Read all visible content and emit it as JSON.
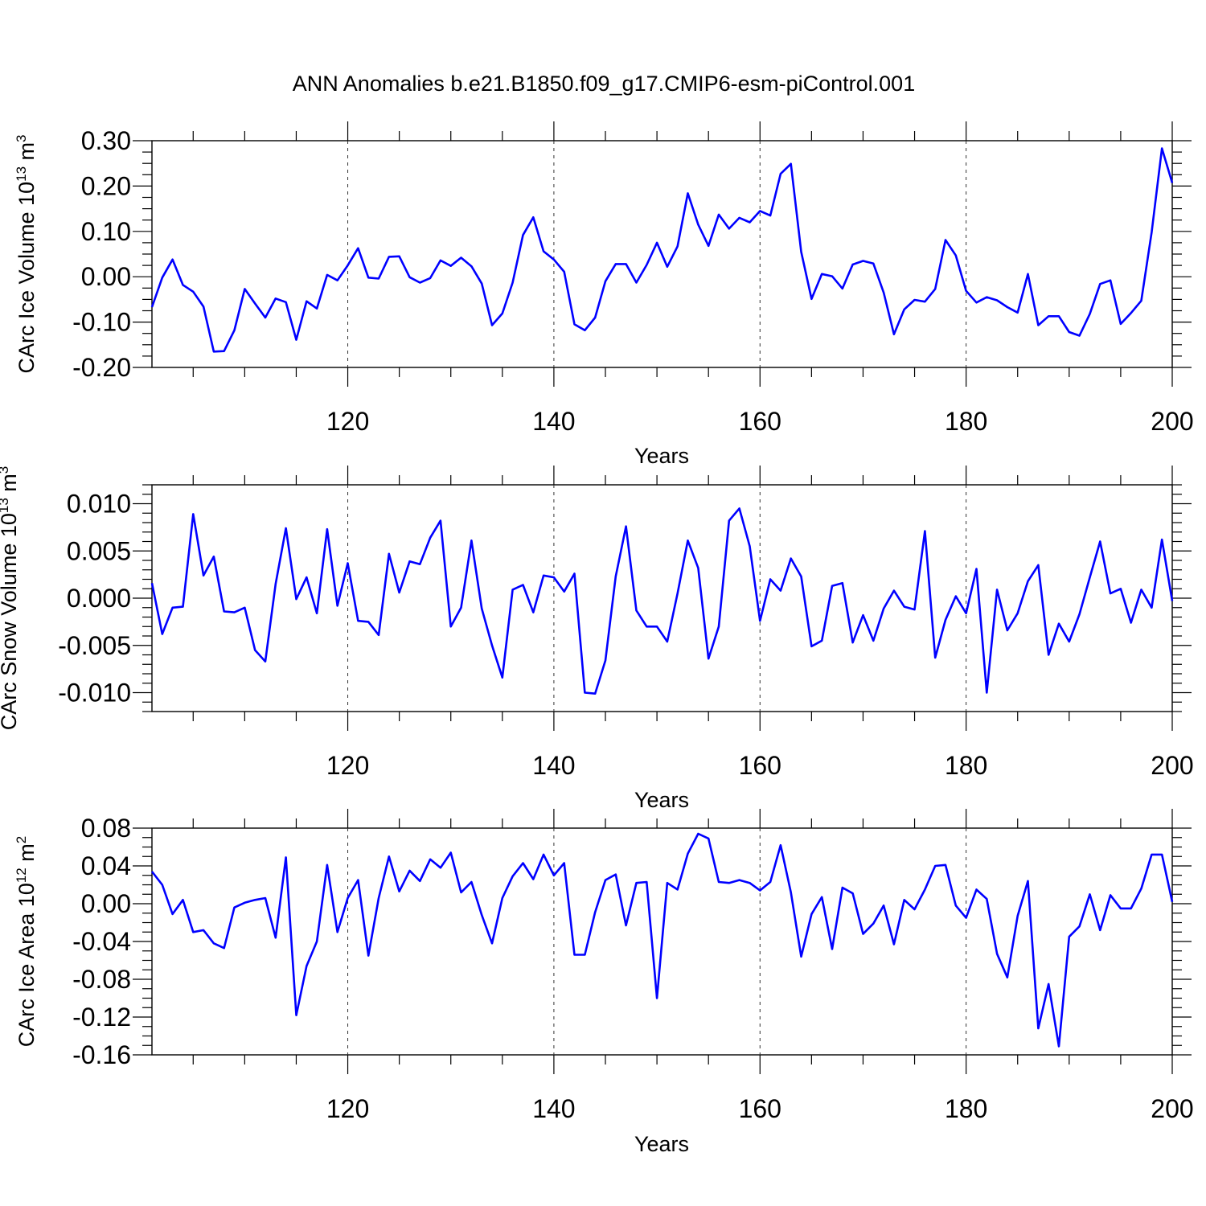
{
  "title": "ANN Anomalies b.e21.B1850.f09_g17.CMIP6-esm-piControl.001",
  "line_color": "#0000ff",
  "chart_data": [
    {
      "type": "line",
      "title": "ANN Anomalies b.e21.B1850.f09_g17.CMIP6-esm-piControl.001",
      "xlabel": "Years",
      "ylabel": "CArc Ice Volume 10",
      "ylabel_exp": "13",
      "ylabel_unit": "m",
      "ylabel_unit_exp": "3",
      "xlim": [
        101,
        200
      ],
      "ylim": [
        -0.2,
        0.3
      ],
      "yticks": [
        -0.2,
        -0.1,
        0.0,
        0.1,
        0.2,
        0.3
      ],
      "ytick_labels": [
        "-0.20",
        "-0.10",
        "0.00",
        "0.10",
        "0.20",
        "0.30"
      ],
      "yminor": [
        -0.175,
        -0.15,
        -0.125,
        -0.075,
        -0.05,
        -0.025,
        0.025,
        0.05,
        0.075,
        0.125,
        0.15,
        0.175,
        0.225,
        0.25,
        0.275
      ],
      "xticks": [
        120,
        140,
        160,
        180,
        200
      ],
      "xtick_labels": [
        "120",
        "140",
        "160",
        "180",
        "200"
      ],
      "x_start": 101,
      "series": [
        {
          "name": "CArc Ice Volume",
          "values": [
            -0.067,
            -0.002,
            0.038,
            -0.018,
            -0.033,
            -0.066,
            -0.165,
            -0.164,
            -0.118,
            -0.027,
            -0.059,
            -0.09,
            -0.048,
            -0.056,
            -0.139,
            -0.054,
            -0.07,
            0.004,
            -0.008,
            0.025,
            0.063,
            -0.002,
            -0.004,
            0.044,
            0.045,
            -0.001,
            -0.013,
            -0.003,
            0.036,
            0.024,
            0.042,
            0.023,
            -0.015,
            -0.107,
            -0.081,
            -0.013,
            0.092,
            0.131,
            0.056,
            0.038,
            0.011,
            -0.105,
            -0.118,
            -0.09,
            -0.01,
            0.028,
            0.028,
            -0.013,
            0.026,
            0.075,
            0.022,
            0.067,
            0.184,
            0.115,
            0.068,
            0.137,
            0.106,
            0.13,
            0.12,
            0.145,
            0.135,
            0.227,
            0.249,
            0.055,
            -0.049,
            0.006,
            0.001,
            -0.026,
            0.027,
            0.035,
            0.029,
            -0.035,
            -0.127,
            -0.072,
            -0.051,
            -0.055,
            -0.027,
            0.081,
            0.047,
            -0.031,
            -0.057,
            -0.045,
            -0.052,
            -0.067,
            -0.079,
            0.006,
            -0.107,
            -0.087,
            -0.087,
            -0.122,
            -0.13,
            -0.082,
            -0.016,
            -0.008,
            -0.104,
            -0.08,
            -0.053,
            0.098,
            0.283,
            0.207
          ]
        }
      ]
    },
    {
      "type": "line",
      "xlabel": "Years",
      "ylabel": "CArc Snow Volume 10",
      "ylabel_exp": "13",
      "ylabel_unit": "m",
      "ylabel_unit_exp": "3",
      "xlim": [
        101,
        200
      ],
      "ylim": [
        -0.012,
        0.012
      ],
      "yticks": [
        -0.01,
        -0.005,
        0.0,
        0.005,
        0.01
      ],
      "ytick_labels": [
        "-0.010",
        "-0.005",
        "0.000",
        "0.005",
        "0.010"
      ],
      "yminor": [
        -0.012,
        -0.011,
        -0.009,
        -0.008,
        -0.007,
        -0.006,
        -0.004,
        -0.003,
        -0.002,
        -0.001,
        0.001,
        0.002,
        0.003,
        0.004,
        0.006,
        0.007,
        0.008,
        0.009,
        0.011,
        0.012
      ],
      "xticks": [
        120,
        140,
        160,
        180,
        200
      ],
      "xtick_labels": [
        "120",
        "140",
        "160",
        "180",
        "200"
      ],
      "x_start": 101,
      "series": [
        {
          "name": "CArc Snow Volume",
          "values": [
            0.0016,
            -0.0038,
            -0.001,
            -0.0009,
            0.0089,
            0.0024,
            0.0044,
            -0.0014,
            -0.0015,
            -0.001,
            -0.0055,
            -0.0067,
            0.0015,
            0.0074,
            -0.0001,
            0.0022,
            -0.0016,
            0.0073,
            -0.0008,
            0.0037,
            -0.0024,
            -0.0025,
            -0.0039,
            0.0047,
            0.0006,
            0.0039,
            0.0036,
            0.0064,
            0.0082,
            -0.003,
            -0.001,
            0.0061,
            -0.0011,
            -0.005,
            -0.0084,
            0.0009,
            0.0014,
            -0.0015,
            0.0024,
            0.0022,
            0.0007,
            0.0026,
            -0.01,
            -0.0101,
            -0.0066,
            0.0023,
            0.0076,
            -0.0013,
            -0.003,
            -0.003,
            -0.0046,
            0.0005,
            0.0061,
            0.0032,
            -0.0064,
            -0.003,
            0.0082,
            0.0095,
            0.0055,
            -0.0024,
            0.002,
            0.0008,
            0.0042,
            0.0023,
            -0.0051,
            -0.0045,
            0.0013,
            0.0016,
            -0.0047,
            -0.0018,
            -0.0045,
            -0.0011,
            0.0008,
            -0.0009,
            -0.0012,
            0.0071,
            -0.0063,
            -0.0023,
            0.0002,
            -0.0016,
            0.0031,
            -0.01,
            0.0009,
            -0.0034,
            -0.0016,
            0.0018,
            0.0035,
            -0.006,
            -0.0027,
            -0.0046,
            -0.0017,
            0.0022,
            0.006,
            0.0005,
            0.001,
            -0.0026,
            0.0009,
            -0.001,
            0.0062,
            -0.0003
          ]
        }
      ]
    },
    {
      "type": "line",
      "xlabel": "Years",
      "ylabel": "CArc Ice Area 10",
      "ylabel_exp": "12",
      "ylabel_unit": "m",
      "ylabel_unit_exp": "2",
      "xlim": [
        101,
        200
      ],
      "ylim": [
        -0.16,
        0.08
      ],
      "yticks": [
        -0.16,
        -0.12,
        -0.08,
        -0.04,
        0.0,
        0.04,
        0.08
      ],
      "ytick_labels": [
        "-0.16",
        "-0.12",
        "-0.08",
        "-0.04",
        "0.00",
        "0.04",
        "0.08"
      ],
      "yminor": [
        -0.15,
        -0.14,
        -0.13,
        -0.11,
        -0.1,
        -0.09,
        -0.07,
        -0.06,
        -0.05,
        -0.03,
        -0.02,
        -0.01,
        0.01,
        0.02,
        0.03,
        0.05,
        0.06,
        0.07
      ],
      "xticks": [
        120,
        140,
        160,
        180,
        200
      ],
      "xtick_labels": [
        "120",
        "140",
        "160",
        "180",
        "200"
      ],
      "x_start": 101,
      "series": [
        {
          "name": "CArc Ice Area",
          "values": [
            0.034,
            0.02,
            -0.011,
            0.004,
            -0.03,
            -0.028,
            -0.042,
            -0.047,
            -0.004,
            0.001,
            0.004,
            0.006,
            -0.036,
            0.049,
            -0.118,
            -0.066,
            -0.04,
            0.041,
            -0.03,
            0.006,
            0.025,
            -0.055,
            0.006,
            0.05,
            0.013,
            0.035,
            0.024,
            0.047,
            0.038,
            0.054,
            0.012,
            0.023,
            -0.012,
            -0.042,
            0.006,
            0.029,
            0.043,
            0.026,
            0.052,
            0.03,
            0.043,
            -0.054,
            -0.054,
            -0.009,
            0.025,
            0.031,
            -0.023,
            0.022,
            0.023,
            -0.1,
            0.022,
            0.015,
            0.053,
            0.074,
            0.069,
            0.023,
            0.022,
            0.025,
            0.022,
            0.014,
            0.023,
            0.062,
            0.012,
            -0.056,
            -0.011,
            0.007,
            -0.048,
            0.017,
            0.011,
            -0.032,
            -0.021,
            -0.002,
            -0.043,
            0.004,
            -0.006,
            0.015,
            0.04,
            0.041,
            -0.002,
            -0.015,
            0.015,
            0.005,
            -0.053,
            -0.078,
            -0.013,
            0.024,
            -0.132,
            -0.085,
            -0.151,
            -0.035,
            -0.024,
            0.01,
            -0.028,
            0.009,
            -0.005,
            -0.005,
            0.016,
            0.052,
            0.052,
            0.002
          ]
        }
      ]
    }
  ]
}
